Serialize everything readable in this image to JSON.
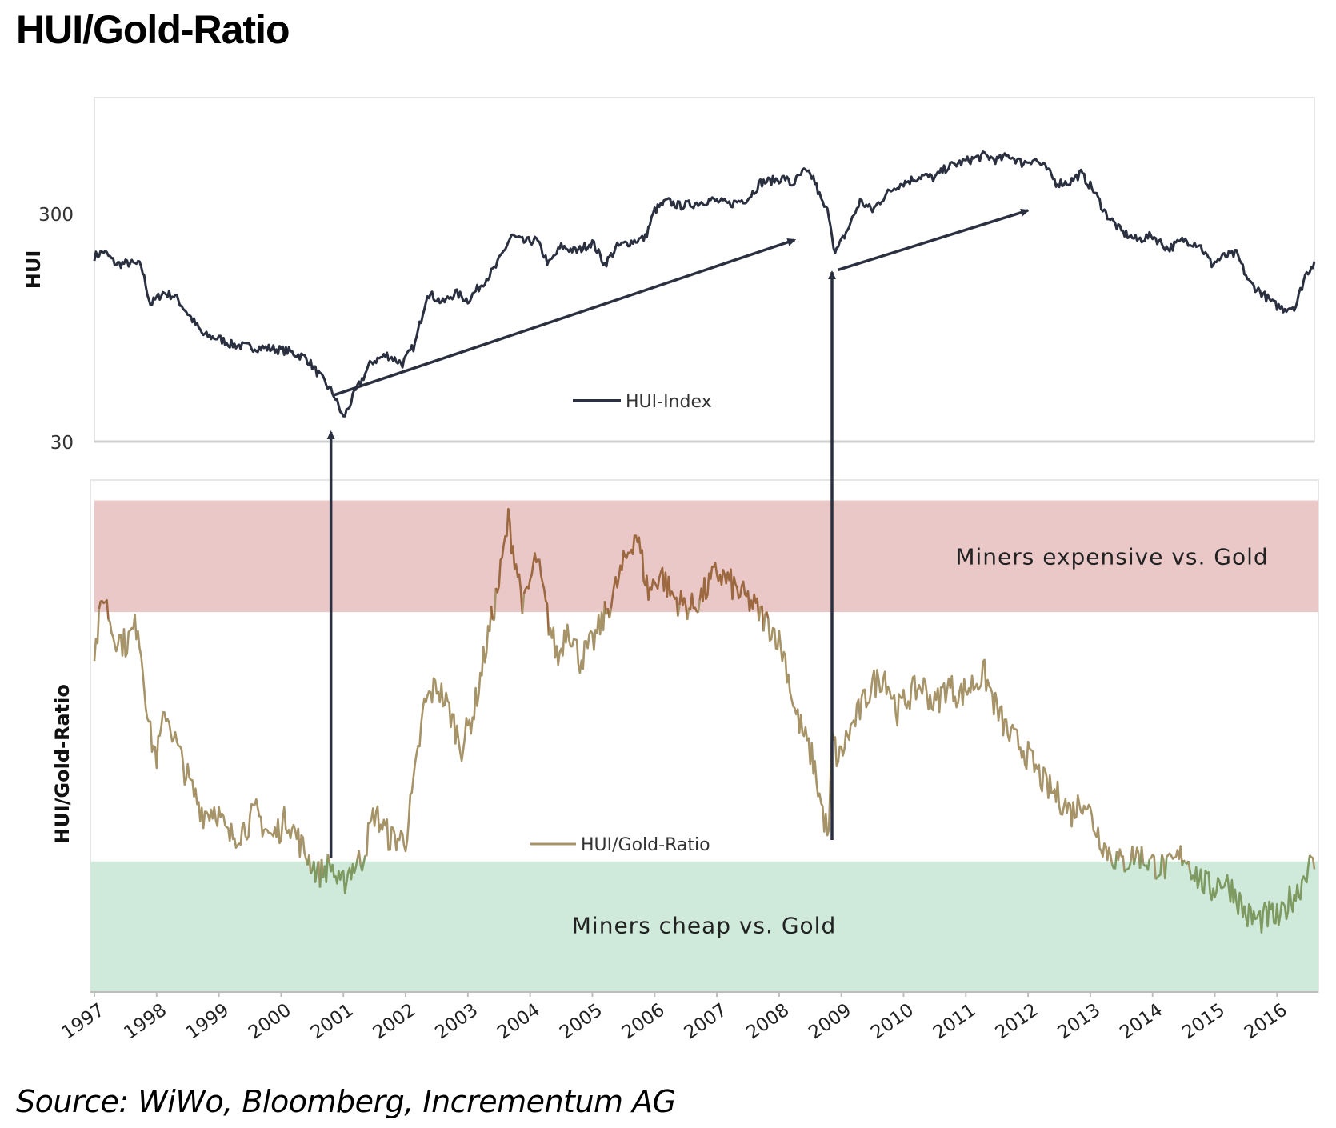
{
  "title": "HUI/Gold-Ratio",
  "source": "Source: WiWo, Bloomberg, Incrementum AG",
  "colors": {
    "hui_line": "#2b3040",
    "ratio_line": "#a69468",
    "ratio_line_red_zone": "#9c6840",
    "ratio_line_green_zone": "#7f9a60",
    "expensive_band": "#ebc8c8",
    "cheap_band": "#cfeadb",
    "arrow": "#2b3040"
  },
  "chart_data": [
    {
      "type": "line",
      "scale": "log",
      "ylabel": "HUI",
      "yticks": [
        "300",
        "30"
      ],
      "ylim": [
        30,
        610
      ],
      "xlim": [
        1997.0,
        2016.6
      ],
      "legend": "HUI-Index",
      "series": [
        {
          "name": "HUI-Index",
          "x": [
            1997.0,
            1997.15,
            1997.35,
            1997.55,
            1997.75,
            1997.9,
            1998.1,
            1998.3,
            1998.55,
            1998.75,
            1999.0,
            1999.2,
            1999.5,
            1999.8,
            2000.1,
            2000.4,
            2000.65,
            2000.85,
            2001.0,
            2001.2,
            2001.45,
            2001.7,
            2001.95,
            2002.15,
            2002.35,
            2002.6,
            2002.8,
            2003.0,
            2003.2,
            2003.45,
            2003.7,
            2003.9,
            2004.1,
            2004.3,
            2004.5,
            2004.75,
            2005.0,
            2005.2,
            2005.4,
            2005.6,
            2005.85,
            2006.0,
            2006.2,
            2006.4,
            2006.6,
            2006.9,
            2007.2,
            2007.5,
            2007.7,
            2007.9,
            2008.1,
            2008.2,
            2008.4,
            2008.55,
            2008.7,
            2008.8,
            2008.9,
            2009.1,
            2009.3,
            2009.5,
            2009.7,
            2009.9,
            2010.1,
            2010.3,
            2010.5,
            2010.7,
            2010.9,
            2011.1,
            2011.3,
            2011.5,
            2011.7,
            2011.9,
            2012.1,
            2012.3,
            2012.45,
            2012.65,
            2012.85,
            2013.05,
            2013.25,
            2013.5,
            2013.75,
            2014.0,
            2014.25,
            2014.5,
            2014.75,
            2014.95,
            2015.15,
            2015.35,
            2015.55,
            2015.75,
            2015.95,
            2016.1,
            2016.3,
            2016.45,
            2016.6
          ],
          "values": [
            195,
            205,
            180,
            182,
            178,
            120,
            135,
            130,
            105,
            88,
            85,
            80,
            78,
            77,
            75,
            70,
            57,
            48,
            38,
            50,
            67,
            72,
            66,
            80,
            135,
            122,
            135,
            125,
            145,
            175,
            240,
            225,
            230,
            180,
            215,
            205,
            225,
            180,
            215,
            225,
            235,
            310,
            340,
            325,
            330,
            345,
            330,
            350,
            410,
            420,
            430,
            400,
            460,
            430,
            330,
            300,
            200,
            255,
            340,
            310,
            360,
            400,
            420,
            440,
            430,
            480,
            500,
            520,
            540,
            515,
            540,
            500,
            520,
            470,
            410,
            410,
            450,
            380,
            300,
            250,
            230,
            240,
            210,
            230,
            220,
            180,
            195,
            200,
            150,
            135,
            120,
            115,
            118,
            160,
            185
          ]
        }
      ]
    },
    {
      "type": "line",
      "ylabel": "HUI/Gold-Ratio",
      "xlim": [
        1997.0,
        2016.6
      ],
      "ylim": [
        0.0,
        1.0
      ],
      "legend": "HUI/Gold-Ratio",
      "categories": [
        "1997",
        "1998",
        "1999",
        "2000",
        "2001",
        "2002",
        "2003",
        "2004",
        "2005",
        "2006",
        "2007",
        "2008",
        "2009",
        "2010",
        "2011",
        "2012",
        "2013",
        "2014",
        "2015",
        "2016"
      ],
      "bands": [
        {
          "label": "Miners expensive vs. Gold",
          "from": 0.742,
          "to": 0.96
        },
        {
          "label": "Miners cheap vs. Gold",
          "from": 0.0,
          "to": 0.255
        }
      ],
      "series": [
        {
          "name": "HUI/Gold-Ratio",
          "x": [
            1997.0,
            1997.15,
            1997.3,
            1997.5,
            1997.7,
            1997.9,
            1998.0,
            1998.15,
            1998.35,
            1998.55,
            1998.75,
            1998.95,
            1999.15,
            1999.4,
            1999.6,
            1999.85,
            2000.1,
            2000.35,
            2000.6,
            2000.8,
            2000.95,
            2001.1,
            2001.3,
            2001.5,
            2001.75,
            2002.0,
            2002.15,
            2002.3,
            2002.5,
            2002.7,
            2002.9,
            2003.1,
            2003.3,
            2003.5,
            2003.65,
            2003.8,
            2003.9,
            2004.1,
            2004.3,
            2004.45,
            2004.6,
            2004.8,
            2005.0,
            2005.15,
            2005.35,
            2005.55,
            2005.7,
            2005.9,
            2006.1,
            2006.25,
            2006.4,
            2006.6,
            2006.8,
            2007.0,
            2007.2,
            2007.35,
            2007.55,
            2007.75,
            2007.95,
            2008.1,
            2008.25,
            2008.4,
            2008.55,
            2008.7,
            2008.8,
            2008.85,
            2008.95,
            2009.1,
            2009.3,
            2009.5,
            2009.7,
            2009.9,
            2010.1,
            2010.3,
            2010.5,
            2010.7,
            2010.9,
            2011.1,
            2011.3,
            2011.5,
            2011.7,
            2011.9,
            2012.1,
            2012.3,
            2012.5,
            2012.7,
            2012.9,
            2013.05,
            2013.25,
            2013.5,
            2013.75,
            2014.0,
            2014.25,
            2014.5,
            2014.75,
            2014.95,
            2015.1,
            2015.3,
            2015.5,
            2015.7,
            2015.9,
            2016.05,
            2016.2,
            2016.35,
            2016.5,
            2016.6
          ],
          "values": [
            0.66,
            0.78,
            0.7,
            0.68,
            0.72,
            0.5,
            0.46,
            0.55,
            0.47,
            0.4,
            0.35,
            0.36,
            0.3,
            0.32,
            0.35,
            0.3,
            0.34,
            0.28,
            0.23,
            0.25,
            0.2,
            0.24,
            0.26,
            0.35,
            0.3,
            0.3,
            0.42,
            0.56,
            0.6,
            0.55,
            0.48,
            0.55,
            0.68,
            0.8,
            0.92,
            0.82,
            0.75,
            0.85,
            0.72,
            0.65,
            0.72,
            0.65,
            0.68,
            0.72,
            0.78,
            0.85,
            0.9,
            0.78,
            0.82,
            0.78,
            0.76,
            0.75,
            0.78,
            0.82,
            0.8,
            0.78,
            0.76,
            0.73,
            0.7,
            0.65,
            0.55,
            0.5,
            0.45,
            0.35,
            0.3,
            0.5,
            0.45,
            0.5,
            0.55,
            0.6,
            0.62,
            0.55,
            0.58,
            0.6,
            0.56,
            0.6,
            0.58,
            0.6,
            0.62,
            0.55,
            0.5,
            0.48,
            0.44,
            0.4,
            0.38,
            0.35,
            0.38,
            0.33,
            0.28,
            0.25,
            0.27,
            0.25,
            0.24,
            0.27,
            0.22,
            0.2,
            0.22,
            0.2,
            0.15,
            0.14,
            0.15,
            0.14,
            0.18,
            0.2,
            0.25,
            0.24
          ]
        }
      ],
      "arrows": [
        {
          "from": [
            2000.8,
            0.24
          ],
          "to": [
            2000.8,
            0.0
          ]
        },
        {
          "from": [
            2008.85,
            0.3
          ],
          "to": [
            2008.85,
            0.0
          ]
        }
      ]
    }
  ],
  "trend_arrows": [
    {
      "from": [
        2000.85,
        48
      ],
      "to": [
        2008.25,
        230
      ]
    },
    {
      "from": [
        2008.95,
        170
      ],
      "to": [
        2012.0,
        310
      ]
    }
  ]
}
